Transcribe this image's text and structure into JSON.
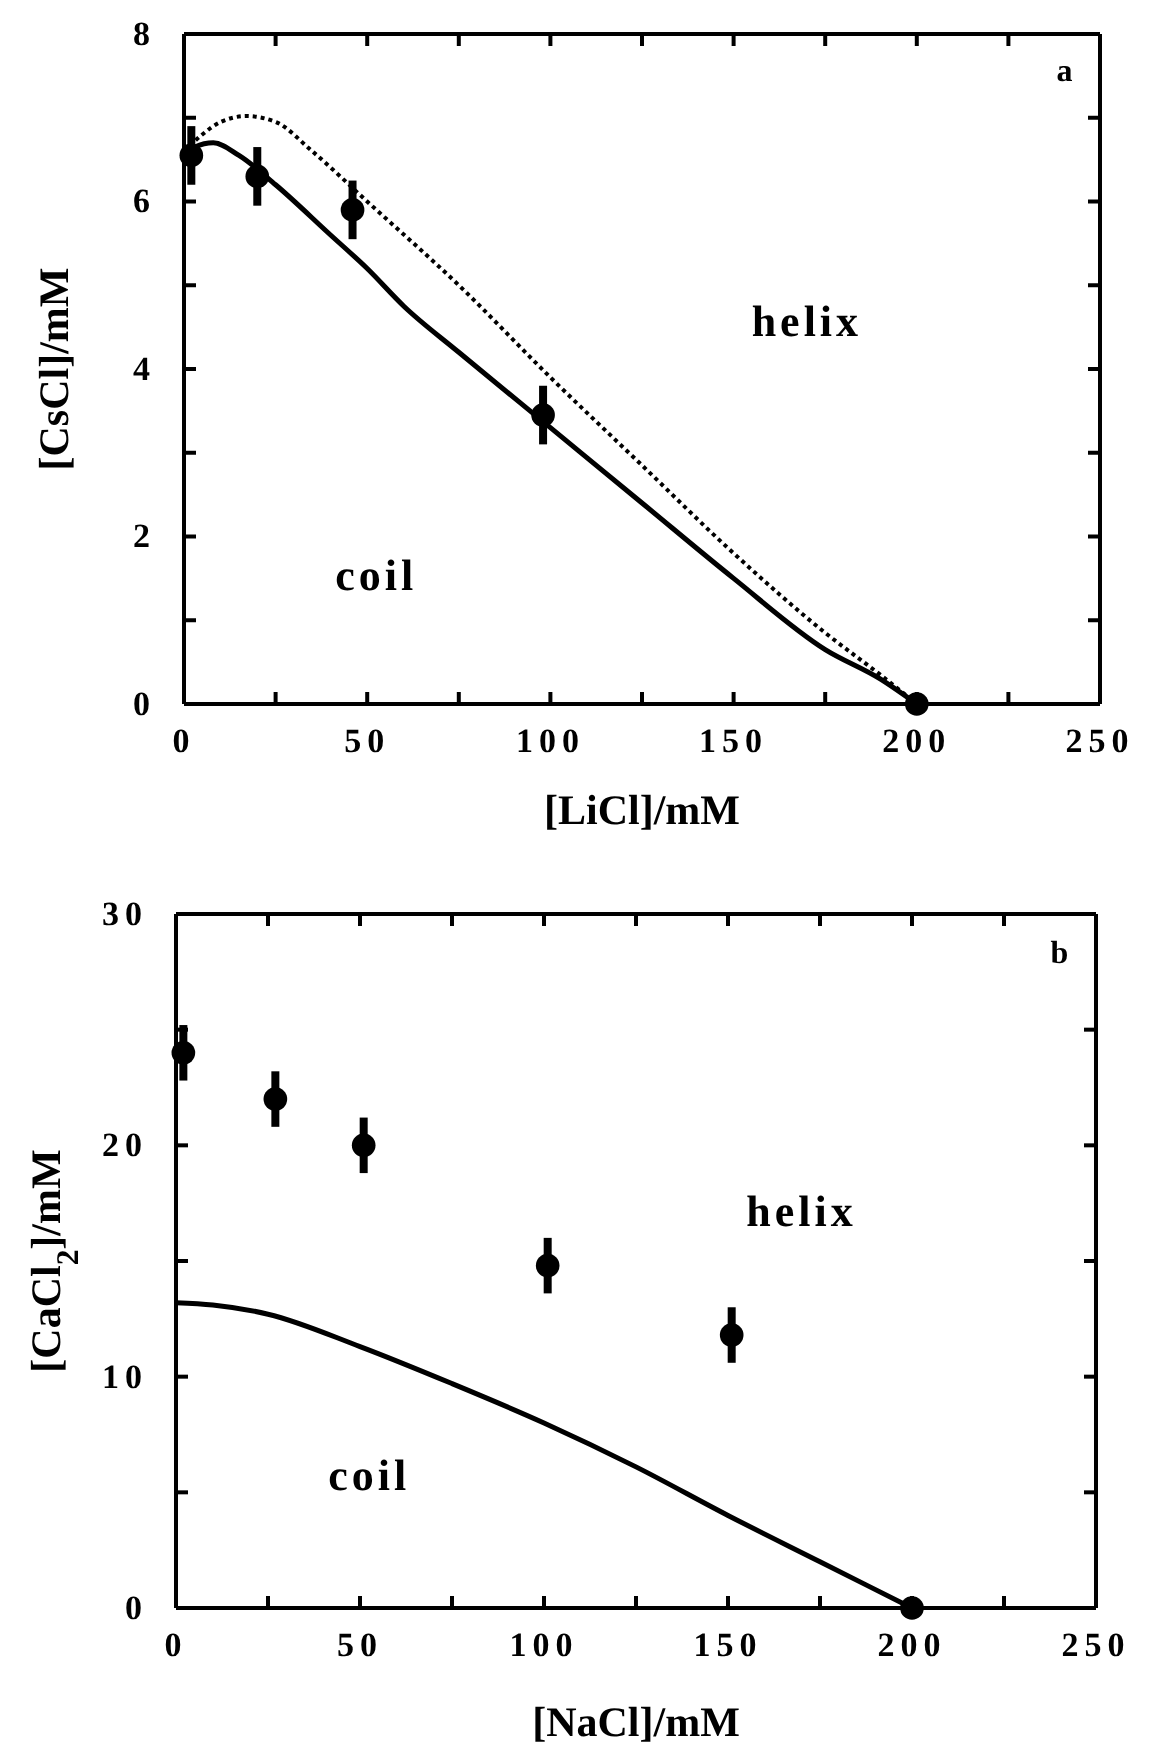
{
  "chart_data": [
    {
      "type": "scatter",
      "xlabel": "[LiCl]/mM",
      "ylabel": "[CsCl]/mM",
      "annotations": [
        "a",
        "helix",
        "coil"
      ],
      "xlim": [
        0,
        250
      ],
      "ylim": [
        0,
        8
      ],
      "xticks": [
        0,
        {
          "value": 25,
          "label": null
        },
        50,
        {
          "value": 75,
          "label": null
        },
        100,
        {
          "value": 125,
          "label": null
        },
        150,
        {
          "value": 175,
          "label": null
        },
        200,
        {
          "value": 225,
          "label": null
        },
        250
      ],
      "yticks": [
        0,
        {
          "value": 1,
          "label": null
        },
        2,
        {
          "value": 3,
          "label": null
        },
        4,
        {
          "value": 5,
          "label": null
        },
        6,
        {
          "value": 7,
          "label": null
        },
        8
      ],
      "grid": false,
      "series": [
        {
          "type": "line",
          "color": "#000000",
          "line_style": "solid",
          "x": [
            0,
            3,
            8,
            15,
            25,
            40,
            50,
            60,
            75,
            100,
            125,
            150,
            175,
            190,
            200
          ],
          "values": [
            6.55,
            6.65,
            6.7,
            6.55,
            6.2,
            5.6,
            5.2,
            4.75,
            4.2,
            3.3,
            2.4,
            1.5,
            0.65,
            0.3,
            0
          ]
        },
        {
          "type": "line",
          "color": "#000000",
          "line_style": "dotted",
          "x": [
            0,
            5,
            10,
            17,
            25,
            35,
            50,
            75,
            100,
            125,
            150,
            175,
            190,
            200
          ],
          "values": [
            6.6,
            6.8,
            6.95,
            7.02,
            6.95,
            6.6,
            6.0,
            5.0,
            3.9,
            2.85,
            1.8,
            0.85,
            0.35,
            0
          ]
        },
        {
          "color": "#000000",
          "marker": "circle",
          "x": [
            2,
            20,
            46,
            98,
            200
          ],
          "values": [
            6.55,
            6.3,
            5.9,
            3.45,
            0
          ],
          "errors": [
            0.35,
            0.35,
            0.35,
            0.35,
            null
          ]
        }
      ]
    },
    {
      "type": "scatter",
      "xlabel": "[NaCl]/mM",
      "ylabel": "[CaCl$_{2}$]/mM",
      "annotations": [
        "b",
        "helix",
        "coil"
      ],
      "xlim": [
        0,
        250
      ],
      "ylim": [
        0,
        30
      ],
      "xticks": [
        0,
        {
          "value": 25,
          "label": null
        },
        50,
        {
          "value": 75,
          "label": null
        },
        100,
        {
          "value": 125,
          "label": null
        },
        150,
        {
          "value": 175,
          "label": null
        },
        200,
        {
          "value": 225,
          "label": null
        },
        250
      ],
      "yticks": [
        0,
        {
          "value": 5,
          "label": null
        },
        10,
        {
          "value": 15,
          "label": null
        },
        20,
        {
          "value": 25,
          "label": null
        },
        30
      ],
      "grid": false,
      "series": [
        {
          "type": "line",
          "color": "#000000",
          "line_style": "solid",
          "x": [
            0,
            10,
            25,
            50,
            75,
            100,
            125,
            150,
            175,
            200
          ],
          "values": [
            13.2,
            13.1,
            12.7,
            11.3,
            9.7,
            8,
            6.1,
            4,
            2,
            0
          ]
        },
        {
          "color": "#000000",
          "marker": "circle",
          "x": [
            2,
            27,
            51,
            101,
            151,
            200
          ],
          "values": [
            24,
            22,
            20,
            14.8,
            11.8,
            0
          ],
          "errors": [
            1.2,
            1.2,
            1.2,
            1.2,
            1.2,
            null
          ]
        }
      ]
    }
  ]
}
